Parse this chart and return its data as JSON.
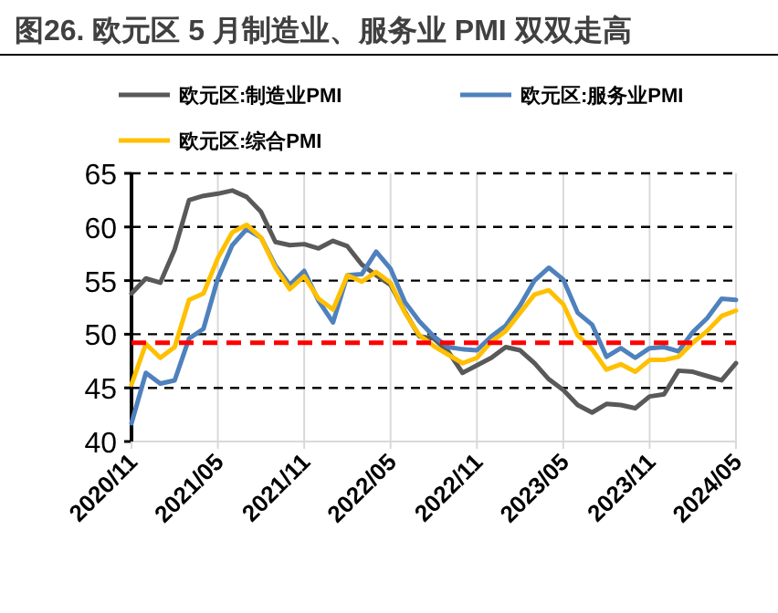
{
  "chart_data": {
    "type": "line",
    "title": "图26. 欧元区 5 月制造业、服务业 PMI 双双走高",
    "x": [
      "2020-11",
      "2020-12",
      "2021-01",
      "2021-02",
      "2021-03",
      "2021-04",
      "2021-05",
      "2021-06",
      "2021-07",
      "2021-08",
      "2021-09",
      "2021-10",
      "2021-11",
      "2021-12",
      "2022-01",
      "2022-02",
      "2022-03",
      "2022-04",
      "2022-05",
      "2022-06",
      "2022-07",
      "2022-08",
      "2022-09",
      "2022-10",
      "2022-11",
      "2022-12",
      "2023-01",
      "2023-02",
      "2023-03",
      "2023-04",
      "2023-05",
      "2023-06",
      "2023-07",
      "2023-08",
      "2023-09",
      "2023-10",
      "2023-11",
      "2023-12",
      "2024-01",
      "2024-02",
      "2024-03",
      "2024-04",
      "2024-05"
    ],
    "series": [
      {
        "name": "欧元区:制造业PMI",
        "color": "#595959",
        "values": [
          53.8,
          55.2,
          54.8,
          57.9,
          62.5,
          62.9,
          63.1,
          63.4,
          62.8,
          61.4,
          58.6,
          58.3,
          58.4,
          58.0,
          58.7,
          58.2,
          56.5,
          55.5,
          54.6,
          52.1,
          49.8,
          49.6,
          48.4,
          46.4,
          47.1,
          47.8,
          48.8,
          48.5,
          47.3,
          45.8,
          44.8,
          43.4,
          42.7,
          43.5,
          43.4,
          43.1,
          44.2,
          44.4,
          46.6,
          46.5,
          46.1,
          45.7,
          47.3
        ]
      },
      {
        "name": "欧元区:服务业PMI",
        "color": "#4f81bd",
        "values": [
          41.7,
          46.4,
          45.4,
          45.7,
          49.6,
          50.5,
          55.2,
          58.3,
          59.8,
          59.0,
          56.4,
          54.6,
          55.9,
          53.1,
          51.1,
          55.5,
          55.6,
          57.7,
          56.1,
          53.0,
          51.2,
          49.8,
          48.8,
          48.6,
          48.5,
          49.8,
          50.8,
          52.7,
          55.0,
          56.2,
          55.1,
          52.0,
          50.9,
          47.9,
          48.7,
          47.8,
          48.7,
          48.8,
          48.4,
          50.2,
          51.5,
          53.3,
          53.2
        ]
      },
      {
        "name": "欧元区:综合PMI",
        "color": "#ffc000",
        "values": [
          45.3,
          49.1,
          47.8,
          48.8,
          53.2,
          53.8,
          57.1,
          59.5,
          60.2,
          59.0,
          56.2,
          54.2,
          55.4,
          53.3,
          52.3,
          55.5,
          54.9,
          55.8,
          54.8,
          52.0,
          49.9,
          48.9,
          48.1,
          47.3,
          47.8,
          49.3,
          50.3,
          52.0,
          53.7,
          54.1,
          52.8,
          49.9,
          48.6,
          46.7,
          47.2,
          46.5,
          47.6,
          47.6,
          47.9,
          49.2,
          50.3,
          51.7,
          52.2
        ]
      }
    ],
    "xlim": [
      "2020-11",
      "2024-05"
    ],
    "xticks": [
      {
        "value": "2020-11",
        "label": "2020/11"
      },
      {
        "value": "2021-05",
        "label": "2021/05"
      },
      {
        "value": "2021-11",
        "label": "2021/11"
      },
      {
        "value": "2022-05",
        "label": "2022/05"
      },
      {
        "value": "2022-11",
        "label": "2022/11"
      },
      {
        "value": "2023-05",
        "label": "2023/05"
      },
      {
        "value": "2023-11",
        "label": "2023/11"
      },
      {
        "value": "2024-05",
        "label": "2024/05"
      }
    ],
    "ylim": [
      40,
      65
    ],
    "yticks": [
      40,
      45,
      50,
      55,
      60,
      65
    ],
    "ref_lines": [
      {
        "axis": "y",
        "value": 49.2,
        "color": "#ff0000",
        "line_style": "dashed"
      }
    ],
    "grid": true,
    "legend": "top",
    "marker": "none",
    "line_style": "solid"
  }
}
